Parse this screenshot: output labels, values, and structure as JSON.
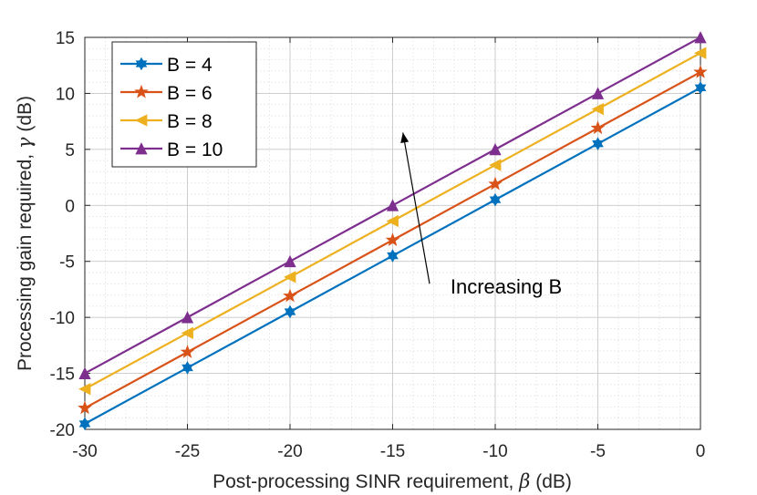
{
  "chart_data": {
    "type": "line",
    "title": "",
    "xlabel": "Post-processing SINR requirement,",
    "xlabel_symbol": "β",
    "xlabel_unit": "(dB)",
    "ylabel": "Processing gain required,",
    "ylabel_symbol": "γ",
    "ylabel_unit": "(dB)",
    "xlim": [
      -30,
      0
    ],
    "ylim": [
      -20,
      15
    ],
    "xticks": [
      -30,
      -25,
      -20,
      -15,
      -10,
      -5,
      0
    ],
    "yticks": [
      -20,
      -15,
      -10,
      -5,
      0,
      5,
      10,
      15
    ],
    "x_tick_labels": [
      "-30",
      "-25",
      "-20",
      "-15",
      "-10",
      "-5",
      "0"
    ],
    "y_tick_labels": [
      "-20",
      "-15",
      "-10",
      "-5",
      "0",
      "5",
      "10",
      "15"
    ],
    "grid": true,
    "legend_position": "top-left",
    "x": [
      -30,
      -25,
      -20,
      -15,
      -10,
      -5,
      0
    ],
    "series": [
      {
        "name": "B = 4",
        "color": "#0072BD",
        "marker": "hexagram",
        "values": [
          -19.5,
          -14.5,
          -9.5,
          -4.5,
          0.5,
          5.5,
          10.5
        ]
      },
      {
        "name": "B = 6",
        "color": "#D95319",
        "marker": "pentagram",
        "values": [
          -18.1,
          -13.1,
          -8.1,
          -3.1,
          1.9,
          6.9,
          11.9
        ]
      },
      {
        "name": "B = 8",
        "color": "#EDB120",
        "marker": "triangle-left",
        "values": [
          -16.4,
          -11.4,
          -6.4,
          -1.4,
          3.6,
          8.6,
          13.6
        ]
      },
      {
        "name": "B = 10",
        "color": "#7E2F8E",
        "marker": "triangle-up",
        "values": [
          -15.0,
          -10.0,
          -5.0,
          0.0,
          5.0,
          10.0,
          15.0
        ]
      }
    ],
    "annotations": [
      {
        "text": "Increasing B",
        "arrow_from": [
          -13.2,
          -7.0
        ],
        "arrow_to": [
          -14.5,
          6.5
        ]
      }
    ]
  }
}
